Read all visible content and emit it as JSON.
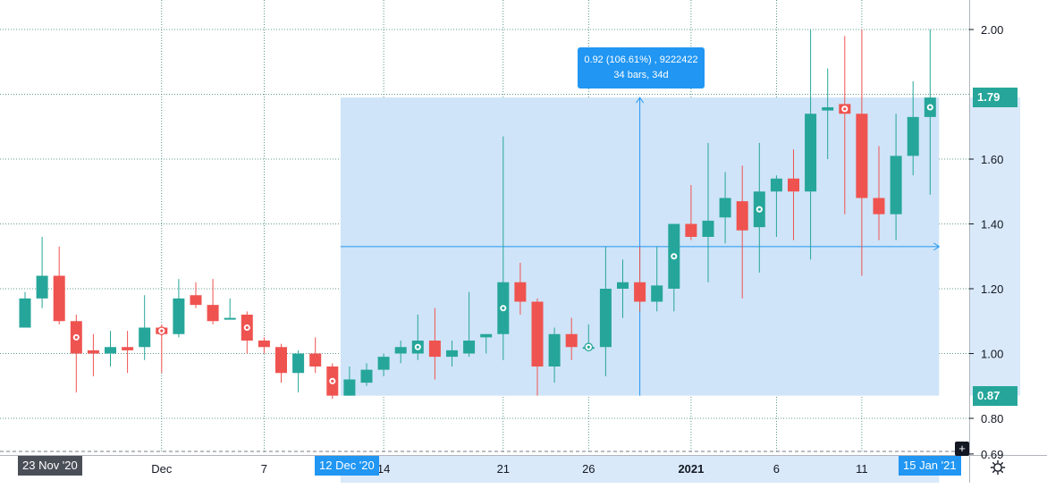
{
  "chart_data": {
    "type": "candlestick",
    "price_range": [
      0.68,
      2.0
    ],
    "y_ticks": [
      "2.00",
      "1.60",
      "1.40",
      "1.20",
      "1.00",
      "0.80",
      "0.69"
    ],
    "x_ticks": [
      {
        "label": "Dec",
        "bold": false
      },
      {
        "label": "7",
        "bold": false
      },
      {
        "label": "14",
        "bold": false
      },
      {
        "label": "21",
        "bold": false
      },
      {
        "label": "26",
        "bold": false
      },
      {
        "label": "2021",
        "bold": true
      },
      {
        "label": "6",
        "bold": false
      },
      {
        "label": "11",
        "bold": false
      }
    ],
    "candles": [
      {
        "date": "2020-11-23",
        "o": 1.08,
        "h": 1.19,
        "l": 1.08,
        "c": 1.17,
        "marker": false
      },
      {
        "date": "2020-11-24",
        "o": 1.17,
        "h": 1.36,
        "l": 1.14,
        "c": 1.24,
        "marker": false
      },
      {
        "date": "2020-11-25",
        "o": 1.24,
        "h": 1.33,
        "l": 1.09,
        "c": 1.1,
        "marker": false
      },
      {
        "date": "2020-11-26",
        "o": 1.1,
        "h": 1.12,
        "l": 0.88,
        "c": 1.0,
        "marker": true
      },
      {
        "date": "2020-11-27",
        "o": 1.01,
        "h": 1.06,
        "l": 0.93,
        "c": 1.0,
        "marker": false
      },
      {
        "date": "2020-11-30",
        "o": 1.0,
        "h": 1.07,
        "l": 0.96,
        "c": 1.02,
        "marker": false
      },
      {
        "date": "2020-12-01",
        "o": 1.02,
        "h": 1.07,
        "l": 0.94,
        "c": 1.01,
        "marker": false
      },
      {
        "date": "2020-12-02",
        "o": 1.02,
        "h": 1.18,
        "l": 0.98,
        "c": 1.08,
        "marker": false
      },
      {
        "date": "2020-12-03",
        "o": 1.08,
        "h": 1.09,
        "l": 0.94,
        "c": 1.06,
        "marker": true
      },
      {
        "date": "2020-12-04",
        "o": 1.06,
        "h": 1.23,
        "l": 1.05,
        "c": 1.17,
        "marker": false
      },
      {
        "date": "2020-12-07",
        "o": 1.18,
        "h": 1.22,
        "l": 1.14,
        "c": 1.15,
        "marker": false
      },
      {
        "date": "2020-12-08",
        "o": 1.15,
        "h": 1.23,
        "l": 1.09,
        "c": 1.1,
        "marker": false
      },
      {
        "date": "2020-12-09",
        "o": 1.11,
        "h": 1.17,
        "l": 1.11,
        "c": 1.11,
        "marker": false
      },
      {
        "date": "2020-12-10",
        "o": 1.12,
        "h": 1.13,
        "l": 1.0,
        "c": 1.04,
        "marker": true
      },
      {
        "date": "2020-12-11",
        "o": 1.04,
        "h": 1.05,
        "l": 1.0,
        "c": 1.02,
        "marker": false
      },
      {
        "date": "2020-12-14",
        "o": 1.02,
        "h": 1.03,
        "l": 0.91,
        "c": 0.94,
        "marker": false
      },
      {
        "date": "2020-12-15",
        "o": 0.94,
        "h": 1.01,
        "l": 0.88,
        "c": 1.0,
        "marker": false
      },
      {
        "date": "2020-12-16",
        "o": 1.0,
        "h": 1.05,
        "l": 0.94,
        "c": 0.96,
        "marker": false
      },
      {
        "date": "2020-12-17",
        "o": 0.96,
        "h": 0.97,
        "l": 0.86,
        "c": 0.87,
        "marker": true
      },
      {
        "date": "2020-12-18",
        "o": 0.87,
        "h": 0.96,
        "l": 0.87,
        "c": 0.92,
        "marker": false
      },
      {
        "date": "2020-12-21",
        "o": 0.91,
        "h": 0.97,
        "l": 0.9,
        "c": 0.95,
        "marker": false
      },
      {
        "date": "2020-12-22",
        "o": 0.95,
        "h": 1.0,
        "l": 0.93,
        "c": 0.99,
        "marker": false
      },
      {
        "date": "2020-12-23",
        "o": 1.0,
        "h": 1.04,
        "l": 0.97,
        "c": 1.02,
        "marker": false
      },
      {
        "date": "2020-12-24",
        "o": 1.0,
        "h": 1.12,
        "l": 0.98,
        "c": 1.04,
        "marker": true
      },
      {
        "date": "2020-12-28",
        "o": 1.04,
        "h": 1.14,
        "l": 0.92,
        "c": 0.99,
        "marker": false
      },
      {
        "date": "2020-12-29",
        "o": 0.99,
        "h": 1.04,
        "l": 0.96,
        "c": 1.01,
        "marker": false
      },
      {
        "date": "2020-12-30",
        "o": 1.0,
        "h": 1.19,
        "l": 0.99,
        "c": 1.04,
        "marker": false
      },
      {
        "date": "2020-12-31",
        "o": 1.05,
        "h": 1.06,
        "l": 1.0,
        "c": 1.06,
        "marker": false
      },
      {
        "date": "2021-01-04",
        "o": 1.06,
        "h": 1.67,
        "l": 0.98,
        "c": 1.22,
        "marker": true
      },
      {
        "date": "2021-01-05",
        "o": 1.22,
        "h": 1.28,
        "l": 1.12,
        "c": 1.16,
        "marker": false
      },
      {
        "date": "2021-01-06",
        "o": 1.16,
        "h": 1.17,
        "l": 0.87,
        "c": 0.96,
        "marker": false
      },
      {
        "date": "2021-01-07",
        "o": 0.96,
        "h": 1.08,
        "l": 0.91,
        "c": 1.06,
        "marker": false
      },
      {
        "date": "2021-01-08",
        "o": 1.06,
        "h": 1.11,
        "l": 0.98,
        "c": 1.02,
        "marker": false
      },
      {
        "date": "2021-01-11",
        "o": 1.02,
        "h": 1.09,
        "l": 1.01,
        "c": 1.02,
        "marker": true
      },
      {
        "date": "2021-01-12",
        "o": 1.02,
        "h": 1.33,
        "l": 0.93,
        "c": 1.2,
        "marker": false
      },
      {
        "date": "2021-01-13",
        "o": 1.2,
        "h": 1.29,
        "l": 1.11,
        "c": 1.22,
        "marker": false
      },
      {
        "date": "2021-01-14",
        "o": 1.22,
        "h": 1.33,
        "l": 1.13,
        "c": 1.16,
        "marker": false
      },
      {
        "date": "2021-01-15",
        "o": 1.16,
        "h": 1.33,
        "l": 1.13,
        "c": 1.21,
        "marker": false
      },
      {
        "date": "2021-01-18",
        "o": 1.2,
        "h": 1.4,
        "l": 1.13,
        "c": 1.4,
        "marker": true
      },
      {
        "date": "2021-01-19",
        "o": 1.4,
        "h": 1.52,
        "l": 1.35,
        "c": 1.36,
        "marker": false
      },
      {
        "date": "2021-01-20",
        "o": 1.36,
        "h": 1.65,
        "l": 1.22,
        "c": 1.41,
        "marker": false
      },
      {
        "date": "2021-01-21",
        "o": 1.42,
        "h": 1.56,
        "l": 1.34,
        "c": 1.48,
        "marker": false
      },
      {
        "date": "2021-01-22",
        "o": 1.47,
        "h": 1.58,
        "l": 1.17,
        "c": 1.38,
        "marker": false
      },
      {
        "date": "2021-01-25",
        "o": 1.39,
        "h": 1.65,
        "l": 1.25,
        "c": 1.5,
        "marker": true
      },
      {
        "date": "2021-01-26",
        "o": 1.5,
        "h": 1.55,
        "l": 1.36,
        "c": 1.54,
        "marker": false
      },
      {
        "date": "2021-01-27",
        "o": 1.54,
        "h": 1.63,
        "l": 1.35,
        "c": 1.5,
        "marker": false
      },
      {
        "date": "2021-01-28",
        "o": 1.5,
        "h": 2.0,
        "l": 1.29,
        "c": 1.74,
        "marker": false
      },
      {
        "date": "2021-01-29",
        "o": 1.75,
        "h": 1.88,
        "l": 1.6,
        "c": 1.76,
        "marker": false
      },
      {
        "date": "2021-02-01",
        "o": 1.77,
        "h": 1.98,
        "l": 1.43,
        "c": 1.74,
        "marker": true
      },
      {
        "date": "2021-02-02",
        "o": 1.74,
        "h": 2.0,
        "l": 1.24,
        "c": 1.48,
        "marker": false
      },
      {
        "date": "2021-02-03",
        "o": 1.48,
        "h": 1.64,
        "l": 1.35,
        "c": 1.43,
        "marker": false
      },
      {
        "date": "2021-02-04",
        "o": 1.43,
        "h": 1.74,
        "l": 1.35,
        "c": 1.61,
        "marker": false
      },
      {
        "date": "2021-02-05",
        "o": 1.61,
        "h": 1.84,
        "l": 1.55,
        "c": 1.73,
        "marker": false
      },
      {
        "date": "2021-02-08",
        "o": 1.73,
        "h": 2.0,
        "l": 1.49,
        "c": 1.79,
        "marker": true
      }
    ],
    "measure": {
      "start_bar": 19,
      "end_bar": 53,
      "price_low": 0.87,
      "price_high": 1.79,
      "midline_price": 1.33,
      "label_line1": "0.92 (106.61%) , 9222422",
      "label_line2": "34 bars, 34d"
    },
    "colors": {
      "up": "#26a69a",
      "down": "#ef5350",
      "grid": "#2e7d6e",
      "measure_fill": "#cfe4f8",
      "measure_line": "#2196f3",
      "tag_dark": "#4a4e57",
      "tag_blue": "#2196f3"
    }
  },
  "axis_tags": {
    "x_start": "23 Nov '20",
    "x_mid": "12 Dec '20",
    "x_end": "15 Jan '21",
    "y_high": "1.79",
    "y_low": "0.87"
  },
  "icons": {
    "settings": "gear-icon",
    "add": "plus-icon"
  },
  "plus_label": "+"
}
